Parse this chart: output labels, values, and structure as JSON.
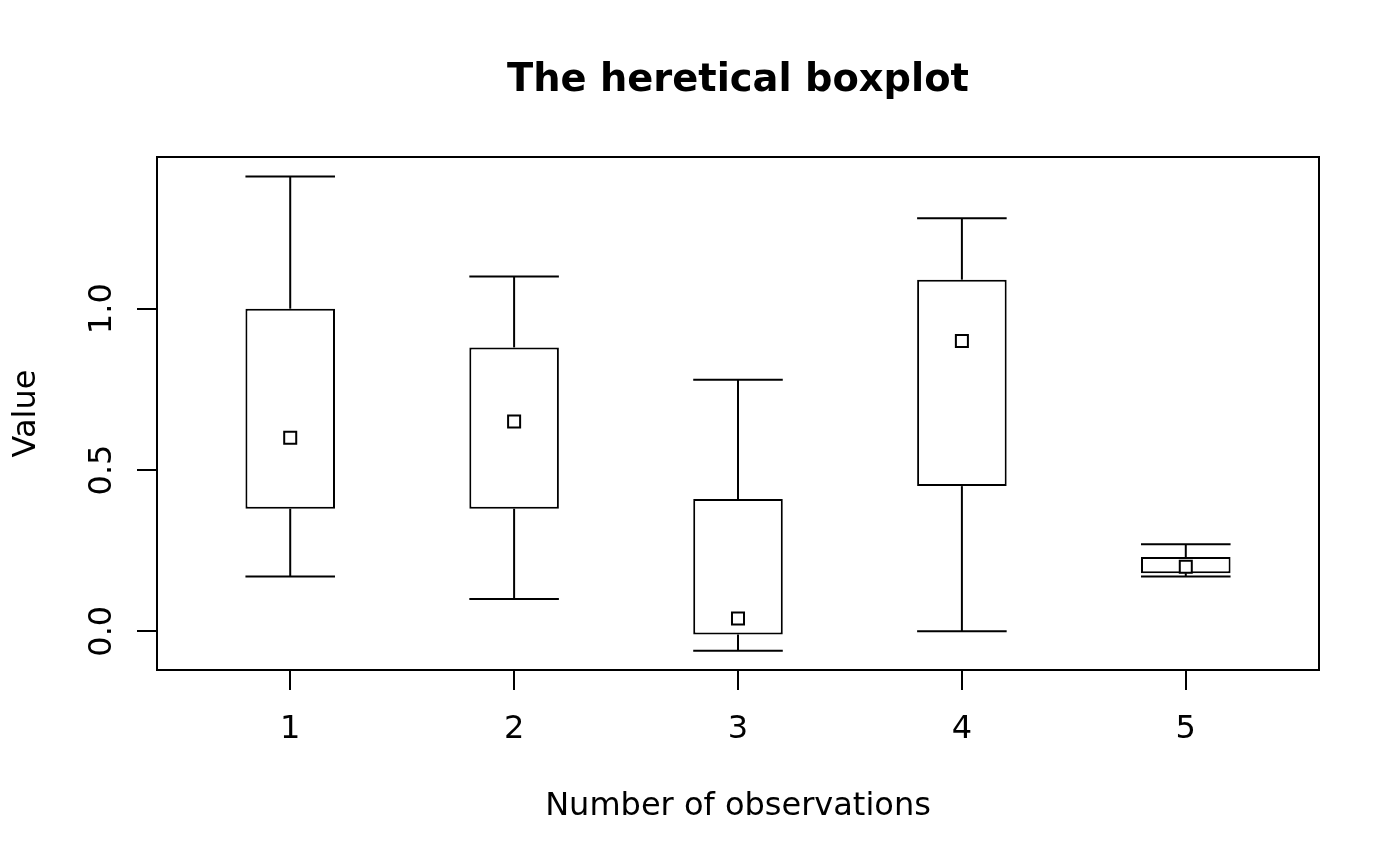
{
  "chart_data": {
    "type": "box",
    "title": "The heretical boxplot",
    "xlabel": "Number of observations",
    "ylabel": "Value",
    "categories": [
      "1",
      "2",
      "3",
      "4",
      "5"
    ],
    "boxes": [
      {
        "low": 0.17,
        "q1": 0.38,
        "median": 0.6,
        "q3": 1.0,
        "high": 1.41
      },
      {
        "low": 0.1,
        "q1": 0.38,
        "median": 0.65,
        "q3": 0.88,
        "high": 1.1
      },
      {
        "low": -0.06,
        "q1": -0.01,
        "median": 0.04,
        "q3": 0.41,
        "high": 0.78
      },
      {
        "low": 0.0,
        "q1": 0.45,
        "median": 0.9,
        "q3": 1.09,
        "high": 1.28
      },
      {
        "low": 0.17,
        "q1": 0.18,
        "median": 0.2,
        "q3": 0.23,
        "high": 0.27
      }
    ],
    "ylim": [
      -0.12,
      1.47
    ],
    "yticks": [
      {
        "value": 0,
        "label": "0.0"
      },
      {
        "value": 0.5,
        "label": "0.5"
      },
      {
        "value": 1,
        "label": "1.0"
      }
    ],
    "marker": "square"
  }
}
